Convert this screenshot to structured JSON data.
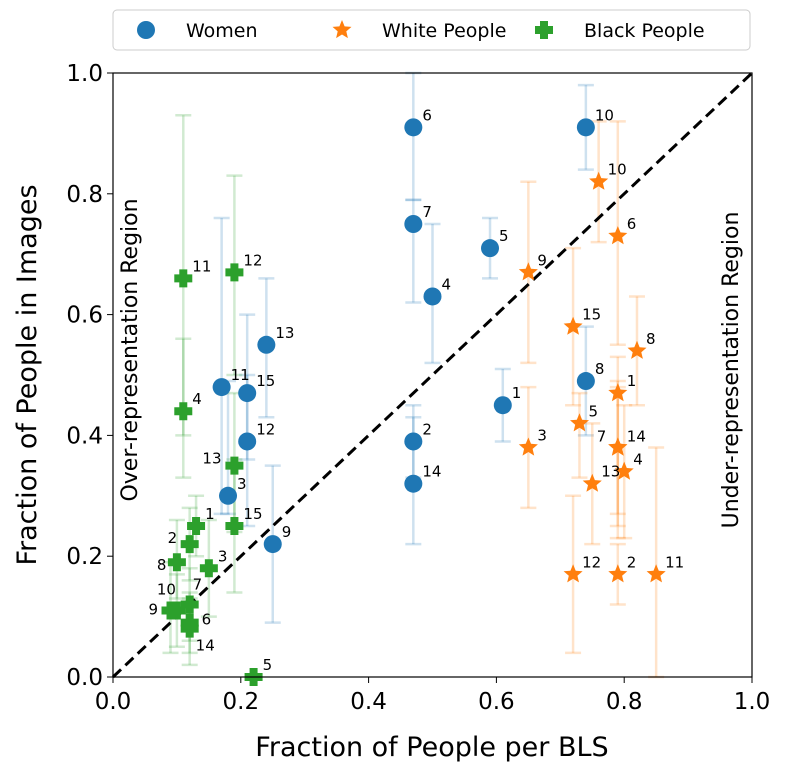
{
  "chart_data": {
    "type": "scatter",
    "xlabel": "Fraction of People per BLS",
    "ylabel": "Fraction of People in Images",
    "xlim": [
      0,
      1
    ],
    "ylim": [
      0,
      1
    ],
    "xticks": [
      "0.0",
      "0.2",
      "0.4",
      "0.6",
      "0.8",
      "1.0"
    ],
    "yticks": [
      "0.0",
      "0.2",
      "0.4",
      "0.6",
      "0.8",
      "1.0"
    ],
    "grid": false,
    "legend_position": "top",
    "annotations": {
      "over": "Over-representation Region",
      "under": "Under-representation Region"
    },
    "reference_line": "y = x (dashed)",
    "series": [
      {
        "name": "Women",
        "color": "#1f77b4",
        "marker": "circle",
        "points": [
          {
            "label": "1",
            "x": 0.61,
            "y": 0.45,
            "err": [
              0.39,
              0.51
            ]
          },
          {
            "label": "2",
            "x": 0.47,
            "y": 0.39,
            "err": [
              0.33,
              0.45
            ]
          },
          {
            "label": "3",
            "x": 0.18,
            "y": 0.3,
            "err": [
              0.27,
              0.49
            ]
          },
          {
            "label": "4",
            "x": 0.5,
            "y": 0.63,
            "err": [
              0.52,
              0.75
            ]
          },
          {
            "label": "5",
            "x": 0.59,
            "y": 0.71,
            "err": [
              0.66,
              0.76
            ]
          },
          {
            "label": "6",
            "x": 0.47,
            "y": 0.91,
            "err": [
              0.79,
              1.0
            ]
          },
          {
            "label": "7",
            "x": 0.47,
            "y": 0.75,
            "err": [
              0.62,
              0.79
            ]
          },
          {
            "label": "8",
            "x": 0.74,
            "y": 0.49,
            "err": [
              0.4,
              0.58
            ]
          },
          {
            "label": "9",
            "x": 0.25,
            "y": 0.22,
            "err": [
              0.09,
              0.35
            ]
          },
          {
            "label": "10",
            "x": 0.74,
            "y": 0.91,
            "err": [
              0.84,
              0.98
            ]
          },
          {
            "label": "11",
            "x": 0.17,
            "y": 0.48,
            "err": [
              0.27,
              0.76
            ]
          },
          {
            "label": "12",
            "x": 0.21,
            "y": 0.39,
            "err": [
              0.25,
              0.5
            ]
          },
          {
            "label": "13",
            "x": 0.24,
            "y": 0.55,
            "err": [
              0.43,
              0.66
            ]
          },
          {
            "label": "14",
            "x": 0.47,
            "y": 0.32,
            "err": [
              0.22,
              0.43
            ]
          },
          {
            "label": "15",
            "x": 0.21,
            "y": 0.47,
            "err": [
              0.36,
              0.6
            ]
          }
        ]
      },
      {
        "name": "White People",
        "color": "#ff7f0e",
        "marker": "star",
        "points": [
          {
            "label": "1",
            "x": 0.79,
            "y": 0.47,
            "err": [
              0.27,
              0.53
            ]
          },
          {
            "label": "2",
            "x": 0.79,
            "y": 0.17,
            "err": [
              0.12,
              0.22
            ]
          },
          {
            "label": "3",
            "x": 0.65,
            "y": 0.38,
            "err": [
              0.28,
              0.48
            ]
          },
          {
            "label": "4",
            "x": 0.8,
            "y": 0.34,
            "err": [
              0.23,
              0.45
            ]
          },
          {
            "label": "5",
            "x": 0.73,
            "y": 0.42,
            "err": [
              0.33,
              0.47
            ]
          },
          {
            "label": "6",
            "x": 0.79,
            "y": 0.73,
            "err": [
              0.55,
              0.92
            ]
          },
          {
            "label": "7",
            "x": 0.79,
            "y": 0.38,
            "err": [
              0.23,
              0.49
            ]
          },
          {
            "label": "8",
            "x": 0.82,
            "y": 0.54,
            "err": [
              0.45,
              0.63
            ]
          },
          {
            "label": "9",
            "x": 0.65,
            "y": 0.67,
            "err": [
              0.52,
              0.82
            ]
          },
          {
            "label": "10",
            "x": 0.76,
            "y": 0.82,
            "err": [
              0.72,
              0.92
            ]
          },
          {
            "label": "11",
            "x": 0.85,
            "y": 0.17,
            "err": [
              0.0,
              0.38
            ]
          },
          {
            "label": "12",
            "x": 0.72,
            "y": 0.17,
            "err": [
              0.04,
              0.3
            ]
          },
          {
            "label": "13",
            "x": 0.75,
            "y": 0.32,
            "err": [
              0.22,
              0.42
            ]
          },
          {
            "label": "14",
            "x": 0.79,
            "y": 0.38,
            "err": [
              0.25,
              0.48
            ]
          },
          {
            "label": "15",
            "x": 0.72,
            "y": 0.58,
            "err": [
              0.45,
              0.71
            ]
          }
        ]
      },
      {
        "name": "Black People",
        "color": "#2ca02c",
        "marker": "plus",
        "points": [
          {
            "label": "1",
            "x": 0.13,
            "y": 0.25,
            "err": [
              0.2,
              0.3
            ]
          },
          {
            "label": "2",
            "x": 0.12,
            "y": 0.22,
            "err": [
              0.16,
              0.28
            ]
          },
          {
            "label": "3",
            "x": 0.15,
            "y": 0.18,
            "err": [
              0.1,
              0.26
            ]
          },
          {
            "label": "4",
            "x": 0.11,
            "y": 0.44,
            "err": [
              0.33,
              0.56
            ]
          },
          {
            "label": "5",
            "x": 0.22,
            "y": 0.0,
            "err": [
              0.0,
              0.0
            ]
          },
          {
            "label": "6",
            "x": 0.12,
            "y": 0.09,
            "err": [
              0.04,
              0.14
            ]
          },
          {
            "label": "7",
            "x": 0.12,
            "y": 0.12,
            "err": [
              0.06,
              0.18
            ]
          },
          {
            "label": "8",
            "x": 0.1,
            "y": 0.19,
            "err": [
              0.13,
              0.26
            ]
          },
          {
            "label": "9",
            "x": 0.09,
            "y": 0.11,
            "err": [
              0.04,
              0.19
            ]
          },
          {
            "label": "10",
            "x": 0.1,
            "y": 0.11,
            "err": [
              0.05,
              0.17
            ]
          },
          {
            "label": "11",
            "x": 0.11,
            "y": 0.66,
            "err": [
              0.4,
              0.93
            ]
          },
          {
            "label": "12",
            "x": 0.19,
            "y": 0.67,
            "err": [
              0.5,
              0.83
            ]
          },
          {
            "label": "13",
            "x": 0.19,
            "y": 0.35,
            "err": [
              0.24,
              0.47
            ]
          },
          {
            "label": "14",
            "x": 0.12,
            "y": 0.08,
            "err": [
              0.02,
              0.13
            ]
          },
          {
            "label": "15",
            "x": 0.19,
            "y": 0.25,
            "err": [
              0.14,
              0.36
            ]
          }
        ]
      }
    ]
  }
}
